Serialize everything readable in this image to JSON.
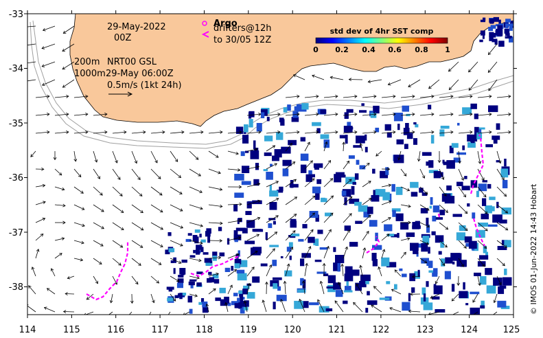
{
  "annotations": {
    "date": "29-May-2022",
    "time": "00Z",
    "argo_label": "Argo",
    "drifters_label": "drifters@12h",
    "drifters_period": "to 30/05 12Z",
    "contour_200": "200m",
    "contour_1000": "1000m",
    "nrt_label": "NRT00 GSL",
    "nrt_time": "29-May 06:00Z",
    "scale_label": "0.5m/s (1kt 24h)"
  },
  "colorbar": {
    "title": "std dev of 4hr SST comp",
    "ticks": [
      "0",
      "0.2",
      "0.4",
      "0.6",
      "0.8",
      "1"
    ],
    "colors": [
      "#00007f",
      "#0000ff",
      "#007fff",
      "#00ffff",
      "#7fff7f",
      "#ffff00",
      "#ff7f00",
      "#ff0000",
      "#7f0000"
    ]
  },
  "axes": {
    "x_ticks": [
      "114",
      "115",
      "116",
      "117",
      "118",
      "119",
      "120",
      "121",
      "122",
      "123",
      "124",
      "125"
    ],
    "y_ticks": [
      "-33",
      "-34",
      "-35",
      "-36",
      "-37",
      "-38"
    ]
  },
  "credit": "© IMOS 01-Jun-2022 14:43 Hobart",
  "colors": {
    "land": "#f9c89b",
    "drifter": "#ff00ff",
    "sst_dark": "#00007f",
    "sst_blue": "#1f4fcf",
    "sst_cyan": "#35a8d8",
    "contour": "#a0a0a0"
  }
}
